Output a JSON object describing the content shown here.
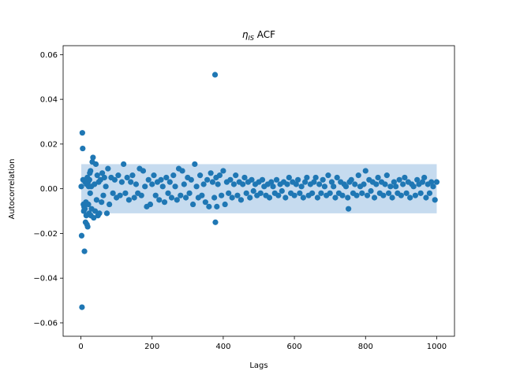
{
  "chart_data": {
    "type": "scatter",
    "title": "ACF",
    "title_symbol": "η",
    "title_subscript": "IS",
    "xlabel": "Lags",
    "ylabel": "Autocorrelation",
    "xlim": [
      -50,
      1050
    ],
    "ylim": [
      -0.066,
      0.064
    ],
    "xticks": [
      0,
      200,
      400,
      600,
      800,
      1000
    ],
    "xtick_labels": [
      "0",
      "200",
      "400",
      "600",
      "800",
      "1000"
    ],
    "yticks": [
      -0.06,
      -0.04,
      -0.02,
      0.0,
      0.02,
      0.04,
      0.06
    ],
    "ytick_labels": [
      "−0.06",
      "−0.04",
      "−0.02",
      "0.00",
      "0.02",
      "0.04",
      "0.06"
    ],
    "grid": false,
    "marker_color": "#1f77b4",
    "band_color": "#c6dbef",
    "confidence_band": {
      "x": [
        1,
        1000
      ],
      "y": [
        -0.011,
        0.011
      ]
    },
    "series": [
      {
        "points": [
          [
            1,
            0.001
          ],
          [
            2,
            -0.021
          ],
          [
            3,
            -0.053
          ],
          [
            4,
            0.025
          ],
          [
            5,
            0.018
          ],
          [
            6,
            0.004
          ],
          [
            7,
            -0.007
          ],
          [
            8,
            -0.01
          ],
          [
            9,
            -0.008
          ],
          [
            10,
            -0.028
          ],
          [
            11,
            -0.009
          ],
          [
            12,
            0.003
          ],
          [
            13,
            -0.015
          ],
          [
            14,
            -0.006
          ],
          [
            15,
            -0.012
          ],
          [
            16,
            0.002
          ],
          [
            17,
            -0.016
          ],
          [
            18,
            0.005
          ],
          [
            19,
            -0.017
          ],
          [
            20,
            0.003
          ],
          [
            21,
            -0.007
          ],
          [
            22,
            0.001
          ],
          [
            23,
            -0.011
          ],
          [
            24,
            0.004
          ],
          [
            25,
            0.007
          ],
          [
            26,
            -0.002
          ],
          [
            27,
            0.008
          ],
          [
            28,
            -0.012
          ],
          [
            29,
            0.001
          ],
          [
            30,
            -0.009
          ],
          [
            32,
            0.012
          ],
          [
            34,
            0.014
          ],
          [
            36,
            -0.013
          ],
          [
            38,
            0.002
          ],
          [
            40,
            -0.01
          ],
          [
            42,
            0.011
          ],
          [
            44,
            -0.005
          ],
          [
            46,
            0.006
          ],
          [
            48,
            -0.012
          ],
          [
            50,
            0.003
          ],
          [
            52,
            -0.011
          ],
          [
            55,
            0.004
          ],
          [
            58,
            -0.006
          ],
          [
            60,
            0.007
          ],
          [
            63,
            -0.003
          ],
          [
            66,
            0.005
          ],
          [
            70,
            0.001
          ],
          [
            73,
            -0.011
          ],
          [
            76,
            0.009
          ],
          [
            80,
            -0.007
          ],
          [
            85,
            0.005
          ],
          [
            90,
            -0.002
          ],
          [
            95,
            0.004
          ],
          [
            100,
            -0.004
          ],
          [
            105,
            0.006
          ],
          [
            110,
            -0.003
          ],
          [
            115,
            0.003
          ],
          [
            120,
            0.011
          ],
          [
            125,
            -0.002
          ],
          [
            130,
            0.005
          ],
          [
            135,
            -0.005
          ],
          [
            140,
            0.003
          ],
          [
            145,
            0.006
          ],
          [
            150,
            -0.004
          ],
          [
            155,
            0.002
          ],
          [
            160,
            -0.002
          ],
          [
            165,
            0.009
          ],
          [
            170,
            -0.003
          ],
          [
            175,
            0.008
          ],
          [
            180,
            0.001
          ],
          [
            185,
            -0.008
          ],
          [
            190,
            0.004
          ],
          [
            195,
            -0.007
          ],
          [
            200,
            0.002
          ],
          [
            205,
            0.006
          ],
          [
            210,
            -0.003
          ],
          [
            215,
            0.003
          ],
          [
            220,
            -0.005
          ],
          [
            225,
            0.004
          ],
          [
            230,
            0.001
          ],
          [
            235,
            -0.006
          ],
          [
            240,
            0.005
          ],
          [
            245,
            -0.002
          ],
          [
            250,
            0.003
          ],
          [
            255,
            -0.004
          ],
          [
            260,
            0.006
          ],
          [
            265,
            0.001
          ],
          [
            270,
            -0.005
          ],
          [
            275,
            0.009
          ],
          [
            280,
            -0.003
          ],
          [
            285,
            0.008
          ],
          [
            290,
            0.002
          ],
          [
            295,
            -0.004
          ],
          [
            300,
            0.005
          ],
          [
            305,
            -0.002
          ],
          [
            310,
            0.004
          ],
          [
            315,
            -0.007
          ],
          [
            320,
            0.011
          ],
          [
            325,
            0.001
          ],
          [
            330,
            -0.004
          ],
          [
            335,
            0.006
          ],
          [
            340,
            -0.003
          ],
          [
            345,
            0.002
          ],
          [
            350,
            -0.006
          ],
          [
            355,
            0.004
          ],
          [
            360,
            -0.008
          ],
          [
            365,
            0.007
          ],
          [
            370,
            0.003
          ],
          [
            375,
            -0.004
          ],
          [
            377,
            0.051
          ],
          [
            378,
            -0.015
          ],
          [
            380,
            0.005
          ],
          [
            382,
            -0.008
          ],
          [
            385,
            0.002
          ],
          [
            390,
            0.006
          ],
          [
            395,
            -0.003
          ],
          [
            400,
            0.008
          ],
          [
            405,
            -0.007
          ],
          [
            410,
            0.003
          ],
          [
            415,
            -0.002
          ],
          [
            420,
            0.004
          ],
          [
            425,
            -0.004
          ],
          [
            430,
            0.002
          ],
          [
            435,
            0.006
          ],
          [
            440,
            -0.003
          ],
          [
            445,
            0.003
          ],
          [
            450,
            -0.005
          ],
          [
            455,
            0.002
          ],
          [
            460,
            0.005
          ],
          [
            465,
            -0.002
          ],
          [
            470,
            0.003
          ],
          [
            475,
            -0.004
          ],
          [
            480,
            0.004
          ],
          [
            485,
            -0.001
          ],
          [
            490,
            0.002
          ],
          [
            495,
            -0.003
          ],
          [
            500,
            0.003
          ],
          [
            505,
            -0.002
          ],
          [
            510,
            0.004
          ],
          [
            515,
            0.001
          ],
          [
            520,
            -0.003
          ],
          [
            525,
            0.002
          ],
          [
            530,
            -0.004
          ],
          [
            535,
            0.003
          ],
          [
            540,
            0.001
          ],
          [
            545,
            -0.002
          ],
          [
            550,
            0.004
          ],
          [
            555,
            -0.003
          ],
          [
            560,
            0.002
          ],
          [
            565,
            -0.001
          ],
          [
            570,
            0.003
          ],
          [
            575,
            -0.004
          ],
          [
            580,
            0.002
          ],
          [
            585,
            0.005
          ],
          [
            590,
            -0.002
          ],
          [
            595,
            0.003
          ],
          [
            600,
            -0.003
          ],
          [
            605,
            0.002
          ],
          [
            610,
            0.004
          ],
          [
            615,
            -0.002
          ],
          [
            620,
            0.001
          ],
          [
            625,
            -0.004
          ],
          [
            630,
            0.003
          ],
          [
            635,
            0.005
          ],
          [
            640,
            -0.003
          ],
          [
            645,
            0.002
          ],
          [
            650,
            -0.002
          ],
          [
            655,
            0.003
          ],
          [
            660,
            0.005
          ],
          [
            665,
            -0.004
          ],
          [
            670,
            0.002
          ],
          [
            675,
            -0.002
          ],
          [
            680,
            0.004
          ],
          [
            685,
            0.001
          ],
          [
            690,
            -0.003
          ],
          [
            695,
            0.006
          ],
          [
            700,
            -0.002
          ],
          [
            705,
            0.003
          ],
          [
            710,
            0.001
          ],
          [
            715,
            -0.004
          ],
          [
            720,
            0.005
          ],
          [
            725,
            -0.002
          ],
          [
            730,
            0.003
          ],
          [
            735,
            -0.003
          ],
          [
            740,
            0.002
          ],
          [
            745,
            0.001
          ],
          [
            750,
            -0.004
          ],
          [
            752,
            -0.009
          ],
          [
            755,
            0.003
          ],
          [
            760,
            0.004
          ],
          [
            765,
            -0.002
          ],
          [
            770,
            0.002
          ],
          [
            775,
            -0.003
          ],
          [
            780,
            0.006
          ],
          [
            785,
            0.001
          ],
          [
            790,
            -0.002
          ],
          [
            795,
            0.002
          ],
          [
            800,
            0.008
          ],
          [
            805,
            -0.003
          ],
          [
            810,
            0.004
          ],
          [
            815,
            -0.001
          ],
          [
            820,
            0.003
          ],
          [
            825,
            -0.004
          ],
          [
            830,
            0.002
          ],
          [
            835,
            0.005
          ],
          [
            840,
            -0.002
          ],
          [
            845,
            0.003
          ],
          [
            850,
            -0.003
          ],
          [
            855,
            0.002
          ],
          [
            860,
            0.006
          ],
          [
            865,
            -0.002
          ],
          [
            870,
            0.001
          ],
          [
            875,
            -0.004
          ],
          [
            880,
            0.003
          ],
          [
            885,
            0.001
          ],
          [
            890,
            -0.002
          ],
          [
            895,
            0.004
          ],
          [
            900,
            -0.003
          ],
          [
            905,
            0.002
          ],
          [
            910,
            0.005
          ],
          [
            915,
            -0.002
          ],
          [
            920,
            0.003
          ],
          [
            925,
            -0.004
          ],
          [
            930,
            0.002
          ],
          [
            935,
            0.001
          ],
          [
            940,
            -0.003
          ],
          [
            945,
            0.004
          ],
          [
            950,
            0.002
          ],
          [
            955,
            -0.002
          ],
          [
            960,
            0.003
          ],
          [
            965,
            0.005
          ],
          [
            970,
            -0.004
          ],
          [
            975,
            0.002
          ],
          [
            980,
            -0.002
          ],
          [
            985,
            0.003
          ],
          [
            990,
            0.001
          ],
          [
            995,
            -0.005
          ],
          [
            1000,
            0.003
          ]
        ]
      }
    ]
  }
}
